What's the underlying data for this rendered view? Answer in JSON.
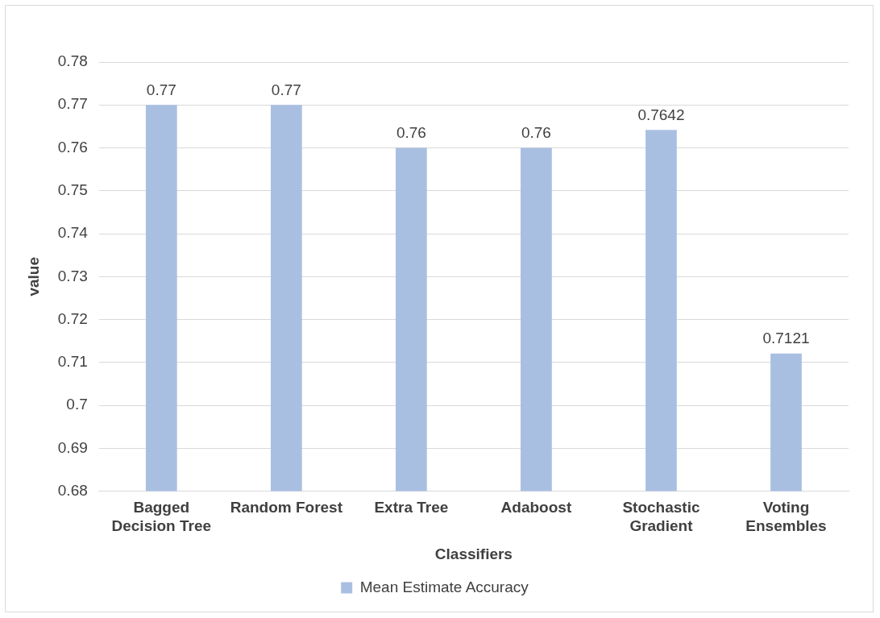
{
  "chart_data": {
    "type": "bar",
    "xlabel": "Classifiers",
    "ylabel": "value",
    "categories": [
      "Bagged Decision Tree",
      "Random Forest",
      "Extra Tree",
      "Adaboost",
      "Stochastic Gradient",
      "Voting Ensembles"
    ],
    "series": [
      {
        "name": "Mean Estimate Accuracy",
        "color": "#a9bfe2",
        "values": [
          0.77,
          0.77,
          0.76,
          0.76,
          0.7642,
          0.7121
        ]
      }
    ],
    "ylim": [
      0.68,
      0.78
    ],
    "yticks": [
      0.68,
      0.69,
      0.7,
      0.71,
      0.72,
      0.73,
      0.74,
      0.75,
      0.76,
      0.77,
      0.78
    ],
    "grid": "y",
    "legend": "bottom",
    "data_labels": true
  }
}
